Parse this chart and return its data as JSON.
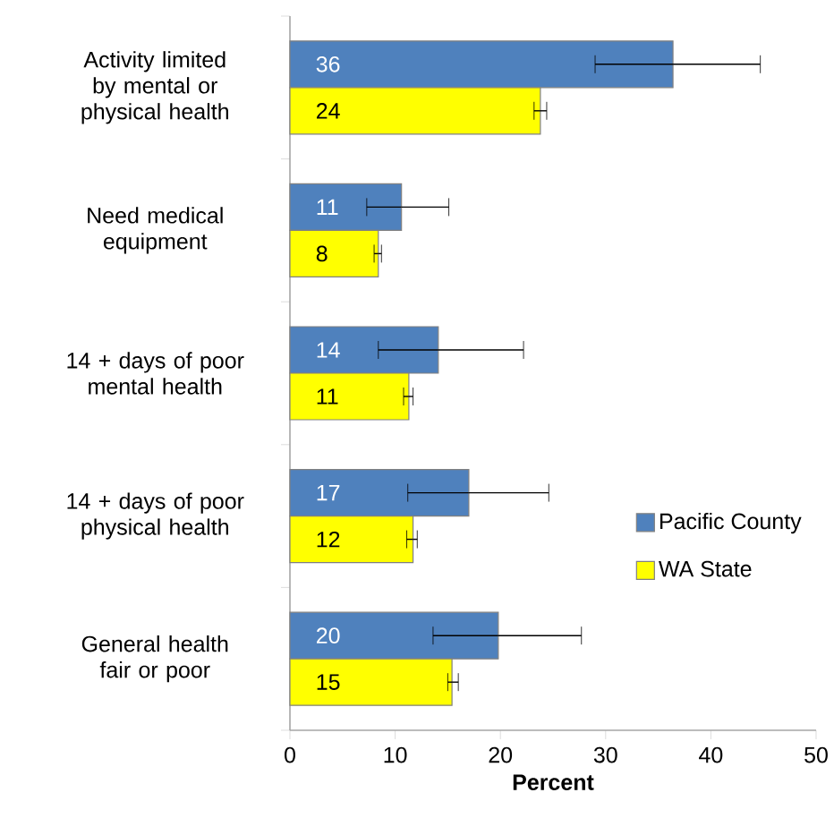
{
  "chart_data": {
    "type": "bar",
    "orientation": "horizontal",
    "xlabel": "**Percent**",
    "categories": [
      "Activity limited by mental or physical health",
      "Need medical equipment",
      "14 + days of poor mental health",
      "14 + days of poor physical health",
      "General health fair or poor"
    ],
    "series": [
      {
        "name": "Pacific County",
        "color": "#4f81bd",
        "values": [
          36.4,
          10.6,
          14.1,
          17.0,
          19.8
        ],
        "errors": [
          [
            29.0,
            44.7
          ],
          [
            7.3,
            15.1
          ],
          [
            8.4,
            22.2
          ],
          [
            11.2,
            24.6
          ],
          [
            13.6,
            27.7
          ]
        ],
        "value_labels": [
          "36",
          "11",
          "14",
          "17",
          "20"
        ]
      },
      {
        "name": "WA State",
        "color": "#ffff00",
        "values": [
          23.8,
          8.4,
          11.3,
          11.7,
          15.4
        ],
        "errors": [
          [
            23.2,
            24.4
          ],
          [
            8.0,
            8.7
          ],
          [
            10.8,
            11.7
          ],
          [
            11.1,
            12.1
          ],
          [
            15.0,
            16.0
          ]
        ],
        "value_labels": [
          "24",
          "8",
          "11",
          "12",
          "15"
        ]
      }
    ],
    "xlim": [
      0,
      50
    ],
    "xticks": [
      0,
      10,
      20,
      30,
      40,
      50
    ],
    "grid": false,
    "legend": "bottom right"
  }
}
